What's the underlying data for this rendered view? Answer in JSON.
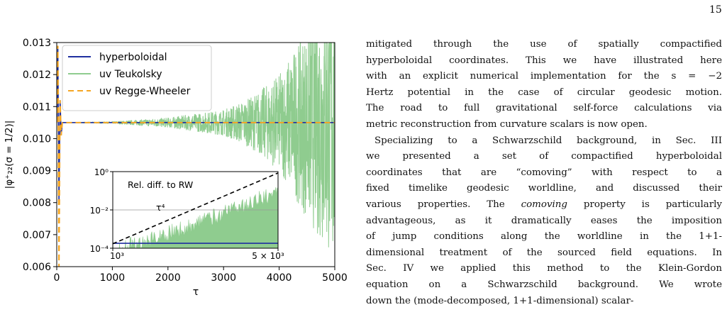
{
  "page_number": "15",
  "figure": {
    "chart_data": [
      {
        "type": "line",
        "xlabel": "τ",
        "ylabel": "|φ⁺₂₂(σ = 1/2)|",
        "xlim": [
          0,
          5000
        ],
        "ylim": [
          0.006,
          0.013
        ],
        "x_ticks": [
          "0",
          "1000",
          "2000",
          "3000",
          "4000",
          "5000"
        ],
        "y_ticks": [
          "0.006",
          "0.007",
          "0.008",
          "0.009",
          "0.010",
          "0.011",
          "0.012",
          "0.013"
        ],
        "legend_position": "top-left",
        "grid": false,
        "series": [
          {
            "name": "hyperboloidal",
            "color": "#1f2fa0",
            "style": "solid",
            "x": [
              0,
              20,
              40,
              60,
              80,
              100,
              150,
              200,
              1000,
              2000,
              3000,
              4000,
              5000
            ],
            "y": [
              0.0105,
              0.0128,
              0.008,
              0.0112,
              0.0101,
              0.0105,
              0.0105,
              0.0105,
              0.0105,
              0.0105,
              0.0105,
              0.0105,
              0.0105
            ]
          },
          {
            "name": "uv Teukolsky",
            "color": "#8fcc8f",
            "style": "solid",
            "x": [
              0,
              1000,
              2000,
              3000,
              3500,
              4000,
              4500,
              5000
            ],
            "y_center": [
              0.0105,
              0.0105,
              0.0105,
              0.0105,
              0.0105,
              0.0105,
              0.0105,
              0.0105
            ],
            "y_amplitude": [
              0.0,
              3e-05,
              0.00015,
              0.0004,
              0.0008,
              0.0015,
              0.003,
              0.0045
            ]
          },
          {
            "name": "uv Regge-Wheeler",
            "color": "#f5a623",
            "style": "dashed",
            "x": [
              0,
              20,
              40,
              60,
              80,
              100,
              150,
              200,
              1000,
              2000,
              3000,
              4000,
              5000
            ],
            "y": [
              0.0105,
              0.0129,
              0.006,
              0.0112,
              0.0101,
              0.0105,
              0.0105,
              0.0105,
              0.0105,
              0.0105,
              0.0105,
              0.0105,
              0.0105
            ]
          }
        ]
      },
      {
        "type": "line",
        "title": "Rel. diff. to RW",
        "x_scale": "log",
        "y_scale": "log",
        "xlim": [
          1000,
          5000
        ],
        "ylim": [
          0.0001,
          1
        ],
        "x_ticks": [
          "10³",
          "5 × 10³"
        ],
        "y_ticks": [
          "10⁻⁴",
          "10⁻²",
          "10⁰"
        ],
        "annotation": "τ⁴",
        "series": [
          {
            "name": "τ⁴",
            "color": "#000000",
            "style": "dashed",
            "x": [
              1000,
              5000
            ],
            "y": [
              0.00017,
              0.85
            ]
          },
          {
            "name": "hyperboloidal",
            "color": "#1f2fa0",
            "style": "solid",
            "x": [
              1000,
              5000
            ],
            "y": [
              0.00018,
              0.00018
            ]
          },
          {
            "name": "uv Teukolsky",
            "color": "#8fcc8f",
            "style": "solid",
            "x": [
              1000,
              2000,
              3000,
              4000,
              5000
            ],
            "y_upper": [
              0.0002,
              0.003,
              0.02,
              0.08,
              0.25
            ]
          }
        ]
      }
    ]
  },
  "text": {
    "p1": [
      "mitigated through the use of spatially compactified",
      "hyperboloidal coordinates. This we have illustrated here",
      "with an explicit numerical implementation for the s = −2",
      "Hertz potential in the case of circular geodesic motion.",
      "The road to full gravitational self-force calculations via",
      "metric reconstruction from curvature scalars is now open."
    ],
    "p2": [
      "Specializing to a Schwarzschild background, in Sec. III",
      "we presented a set of compactified hyperboloidal",
      "coordinates that are “comoving” with respect to a",
      "fixed timelike geodesic worldline, and discussed their",
      "various properties. The ",
      "comoving",
      " property is particularly",
      "advantageous, as it dramatically eases the imposition",
      "of jump conditions along the worldline in the 1+1-",
      "dimensional treatment of the sourced field equations. In",
      "Sec. IV we applied this method to the Klein-Gordon",
      "equation on a Schwarzschild background.  We wrote",
      "down the (mode-decomposed, 1+1-dimensional) scalar-"
    ]
  }
}
